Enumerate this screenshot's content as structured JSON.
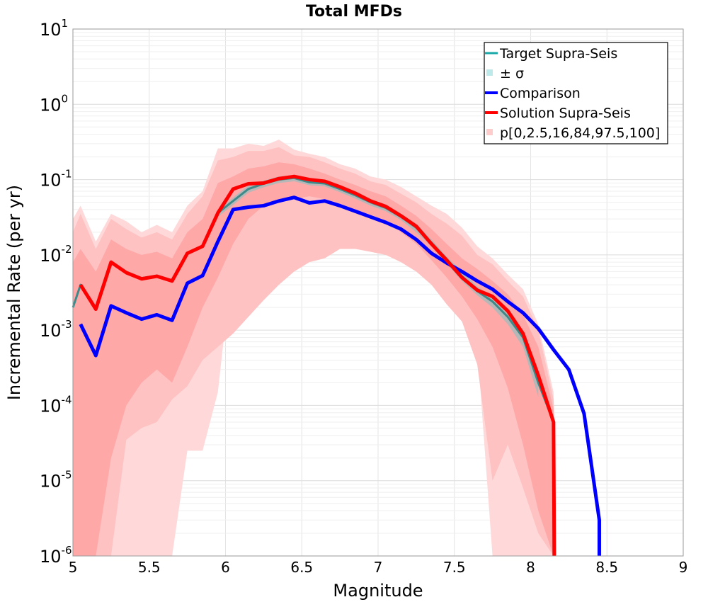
{
  "chart_data": {
    "type": "line",
    "title": "Total MFDs",
    "xlabel": "Magnitude",
    "ylabel": "Incremental Rate (per yr)",
    "xlim": [
      5,
      9
    ],
    "ylim": [
      1e-06,
      10
    ],
    "yscale": "log",
    "grid": true,
    "legend_position": "top-right",
    "x_ticks": [
      "5",
      "5.5",
      "6",
      "6.5",
      "7",
      "7.5",
      "8",
      "8.5",
      "9"
    ],
    "y_ticks": [
      {
        "base": "10",
        "exp": "-6"
      },
      {
        "base": "10",
        "exp": "-5"
      },
      {
        "base": "10",
        "exp": "-4"
      },
      {
        "base": "10",
        "exp": "-3"
      },
      {
        "base": "10",
        "exp": "-2"
      },
      {
        "base": "10",
        "exp": "-1"
      },
      {
        "base": "10",
        "exp": "0"
      },
      {
        "base": "10",
        "exp": "1"
      }
    ],
    "legend": [
      {
        "label": "Target Supra-Seis",
        "color": "#1aa8a8",
        "kind": "line"
      },
      {
        "label": "± σ",
        "color": "#bde9ea",
        "kind": "box"
      },
      {
        "label": "Comparison",
        "color": "#0000ff",
        "kind": "line"
      },
      {
        "label": "Solution Supra-Seis",
        "color": "#ff0000",
        "kind": "line"
      },
      {
        "label": "p[0,2.5,16,84,97.5,100]",
        "color": "#ffcccc",
        "kind": "box"
      }
    ],
    "x": [
      5.05,
      5.15,
      5.25,
      5.35,
      5.45,
      5.55,
      5.65,
      5.75,
      5.85,
      5.95,
      6.05,
      6.15,
      6.25,
      6.35,
      6.45,
      6.55,
      6.65,
      6.75,
      6.85,
      6.95,
      7.05,
      7.15,
      7.25,
      7.35,
      7.45,
      7.55,
      7.65,
      7.75,
      7.85,
      7.95,
      8.05,
      8.15,
      8.25,
      8.35,
      8.45
    ],
    "series": [
      {
        "name": "Target Supra-Seis",
        "color": "#3d8a8a",
        "x": [
          5.0,
          5.05,
          5.15,
          5.25,
          5.35,
          5.45,
          5.55,
          5.65,
          5.75,
          5.85,
          5.95,
          6.05,
          6.15,
          6.25,
          6.35,
          6.45,
          6.55,
          6.65,
          6.75,
          6.85,
          6.95,
          7.05,
          7.15,
          7.25,
          7.35,
          7.45,
          7.55,
          7.65,
          7.75,
          7.85,
          7.95,
          8.05,
          8.15,
          8.15
        ],
        "values": [
          0.002,
          0.004,
          0.0019,
          0.008,
          0.0058,
          0.0049,
          0.0053,
          0.0044,
          0.0105,
          0.013,
          0.036,
          0.052,
          0.075,
          0.088,
          0.1,
          0.105,
          0.092,
          0.089,
          0.075,
          0.062,
          0.05,
          0.042,
          0.032,
          0.023,
          0.0145,
          0.0085,
          0.0052,
          0.0033,
          0.0024,
          0.0015,
          0.0008,
          0.0002,
          6e-05,
          1e-06
        ]
      },
      {
        "name": "Comparison",
        "color": "#0000ff",
        "x": [
          5.05,
          5.15,
          5.25,
          5.35,
          5.45,
          5.55,
          5.65,
          5.75,
          5.85,
          5.95,
          6.05,
          6.15,
          6.25,
          6.35,
          6.45,
          6.55,
          6.65,
          6.75,
          6.85,
          6.95,
          7.05,
          7.15,
          7.25,
          7.35,
          7.45,
          7.55,
          7.65,
          7.75,
          7.85,
          7.95,
          8.05,
          8.15,
          8.25,
          8.35,
          8.45,
          8.45
        ],
        "values": [
          0.0012,
          0.00046,
          0.0021,
          0.0017,
          0.0014,
          0.0016,
          0.00135,
          0.0042,
          0.0053,
          0.015,
          0.04,
          0.043,
          0.045,
          0.052,
          0.058,
          0.049,
          0.052,
          0.045,
          0.038,
          0.032,
          0.027,
          0.022,
          0.016,
          0.0105,
          0.0078,
          0.006,
          0.0045,
          0.0035,
          0.0024,
          0.0017,
          0.00105,
          0.00055,
          0.0003,
          7.8e-05,
          3e-06,
          1e-06
        ]
      },
      {
        "name": "Solution Supra-Seis",
        "color": "#ff0000",
        "x": [
          5.05,
          5.15,
          5.25,
          5.35,
          5.45,
          5.55,
          5.65,
          5.75,
          5.85,
          5.95,
          6.05,
          6.15,
          6.25,
          6.35,
          6.45,
          6.55,
          6.65,
          6.75,
          6.85,
          6.95,
          7.05,
          7.15,
          7.25,
          7.35,
          7.45,
          7.55,
          7.65,
          7.75,
          7.85,
          7.95,
          8.05,
          8.15,
          8.155
        ],
        "values": [
          0.004,
          0.0019,
          0.008,
          0.0058,
          0.0048,
          0.0052,
          0.0045,
          0.0105,
          0.013,
          0.036,
          0.075,
          0.088,
          0.09,
          0.103,
          0.11,
          0.1,
          0.095,
          0.08,
          0.066,
          0.052,
          0.044,
          0.033,
          0.024,
          0.014,
          0.0085,
          0.005,
          0.0034,
          0.0028,
          0.0018,
          0.0009,
          0.00025,
          6e-05,
          1e-06
        ]
      }
    ],
    "bands": [
      {
        "name": "p 0-100",
        "color": "#ffd9d9",
        "x": [
          5.0,
          5.05,
          5.15,
          5.25,
          5.35,
          5.45,
          5.55,
          5.65,
          5.75,
          5.85,
          5.95,
          6.05,
          6.15,
          6.25,
          6.35,
          6.45,
          6.55,
          6.65,
          6.75,
          6.85,
          6.95,
          7.05,
          7.15,
          7.25,
          7.35,
          7.45,
          7.55,
          7.65,
          7.75,
          7.85,
          7.95,
          8.05,
          8.15,
          8.155
        ],
        "upper": [
          0.03,
          0.045,
          0.015,
          0.035,
          0.028,
          0.02,
          0.025,
          0.02,
          0.045,
          0.07,
          0.26,
          0.26,
          0.3,
          0.28,
          0.34,
          0.25,
          0.22,
          0.2,
          0.16,
          0.14,
          0.11,
          0.1,
          0.08,
          0.06,
          0.045,
          0.035,
          0.023,
          0.013,
          0.009,
          0.0055,
          0.0035,
          0.0012,
          0.00015,
          7e-05
        ],
        "lower": [
          1e-06,
          1e-06,
          1e-06,
          1e-06,
          1e-06,
          1e-06,
          1e-06,
          1e-06,
          2.5e-05,
          2.5e-05,
          0.00015,
          0.01,
          0.008,
          0.016,
          0.025,
          0.03,
          0.03,
          0.03,
          0.028,
          0.022,
          0.018,
          0.015,
          0.011,
          0.008,
          0.005,
          0.0025,
          0.0015,
          0.0006,
          1e-06,
          1e-06,
          1e-06,
          1e-06,
          1e-06,
          1e-06
        ]
      },
      {
        "name": "p 2.5-97.5",
        "color": "#ffc2c2",
        "x": [
          5.0,
          5.05,
          5.15,
          5.25,
          5.35,
          5.45,
          5.55,
          5.65,
          5.75,
          5.85,
          5.95,
          6.05,
          6.15,
          6.25,
          6.35,
          6.45,
          6.55,
          6.65,
          6.75,
          6.85,
          6.95,
          7.05,
          7.15,
          7.25,
          7.35,
          7.45,
          7.55,
          7.65,
          7.75,
          7.85,
          7.95,
          8.05,
          8.15,
          8.155
        ],
        "upper": [
          0.02,
          0.035,
          0.012,
          0.03,
          0.022,
          0.017,
          0.02,
          0.016,
          0.035,
          0.06,
          0.18,
          0.2,
          0.24,
          0.24,
          0.27,
          0.21,
          0.2,
          0.17,
          0.14,
          0.12,
          0.095,
          0.085,
          0.065,
          0.05,
          0.035,
          0.026,
          0.018,
          0.01,
          0.0075,
          0.0045,
          0.0028,
          0.001,
          0.00012,
          6e-05
        ],
        "lower": [
          1e-06,
          1e-06,
          1e-06,
          1e-06,
          3.5e-05,
          5e-05,
          6e-05,
          0.00012,
          0.00018,
          0.0004,
          0.0006,
          0.0009,
          0.0015,
          0.0025,
          0.004,
          0.006,
          0.008,
          0.009,
          0.012,
          0.012,
          0.011,
          0.01,
          0.008,
          0.006,
          0.004,
          0.0022,
          0.0013,
          0.00035,
          1e-05,
          3e-05,
          8e-06,
          2e-06,
          1e-06,
          1e-06
        ]
      },
      {
        "name": "p 16-84",
        "color": "#ffa8a8",
        "x": [
          5.0,
          5.05,
          5.15,
          5.25,
          5.35,
          5.45,
          5.55,
          5.65,
          5.75,
          5.85,
          5.95,
          6.05,
          6.15,
          6.25,
          6.35,
          6.45,
          6.55,
          6.65,
          6.75,
          6.85,
          6.95,
          7.05,
          7.15,
          7.25,
          7.35,
          7.45,
          7.55,
          7.65,
          7.75,
          7.85,
          7.95,
          8.05,
          8.15,
          8.155
        ],
        "upper": [
          0.008,
          0.012,
          0.006,
          0.016,
          0.012,
          0.01,
          0.011,
          0.009,
          0.02,
          0.03,
          0.09,
          0.11,
          0.14,
          0.15,
          0.17,
          0.16,
          0.14,
          0.12,
          0.1,
          0.085,
          0.07,
          0.06,
          0.045,
          0.033,
          0.022,
          0.014,
          0.009,
          0.0065,
          0.0045,
          0.003,
          0.0016,
          0.0006,
          9e-05,
          4e-05
        ],
        "lower": [
          1e-06,
          1e-06,
          1e-06,
          2e-05,
          0.0001,
          0.0002,
          0.0003,
          0.0002,
          0.0006,
          0.002,
          0.005,
          0.014,
          0.03,
          0.045,
          0.05,
          0.055,
          0.06,
          0.055,
          0.045,
          0.038,
          0.032,
          0.028,
          0.02,
          0.014,
          0.0085,
          0.005,
          0.0028,
          0.0014,
          0.0006,
          0.00017,
          3e-05,
          4e-06,
          1e-06,
          1e-06
        ]
      },
      {
        "name": "± σ",
        "color": "#b7b7b7",
        "x": [
          5.95,
          6.05,
          6.15,
          6.25,
          6.35,
          6.45,
          6.55,
          6.65,
          6.75,
          6.85,
          6.95,
          7.05,
          7.15,
          7.25,
          7.35,
          7.45,
          7.55,
          7.65,
          7.75,
          7.85,
          7.95,
          8.05
        ],
        "upper": [
          0.038,
          0.058,
          0.083,
          0.097,
          0.11,
          0.115,
          0.1,
          0.097,
          0.082,
          0.068,
          0.055,
          0.046,
          0.035,
          0.026,
          0.016,
          0.0095,
          0.006,
          0.0038,
          0.0028,
          0.0018,
          0.001,
          0.0003
        ],
        "lower": [
          0.032,
          0.046,
          0.067,
          0.079,
          0.09,
          0.095,
          0.084,
          0.081,
          0.068,
          0.056,
          0.045,
          0.038,
          0.029,
          0.02,
          0.013,
          0.0076,
          0.0045,
          0.0029,
          0.002,
          0.0012,
          0.0006,
          0.00013
        ]
      }
    ]
  }
}
